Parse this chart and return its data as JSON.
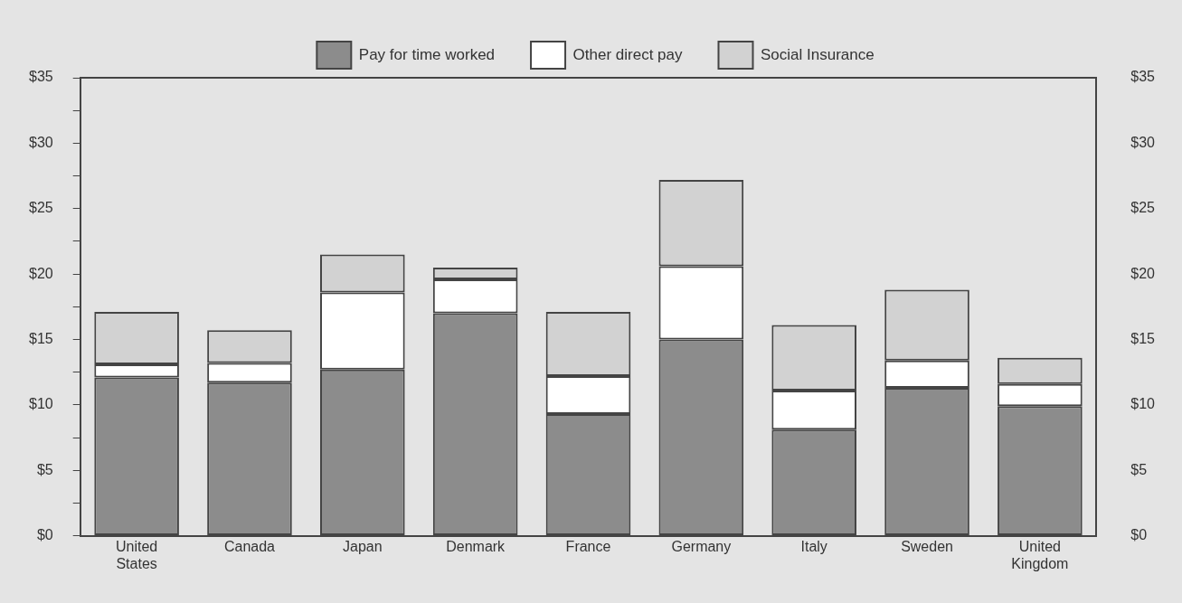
{
  "chart_data": {
    "type": "bar",
    "stacked": true,
    "categories": [
      "United States",
      "Canada",
      "Japan",
      "Denmark",
      "France",
      "Germany",
      "Italy",
      "Sweden",
      "United Kingdom"
    ],
    "series": [
      {
        "name": "Pay for time worked",
        "color": "#8c8c8c",
        "values": [
          12.1,
          11.7,
          12.7,
          17.0,
          9.3,
          15.0,
          8.1,
          11.3,
          9.9
        ]
      },
      {
        "name": "Other direct pay",
        "color": "#ffffff",
        "values": [
          1.0,
          1.5,
          5.9,
          2.6,
          2.9,
          5.6,
          3.0,
          2.1,
          1.7
        ]
      },
      {
        "name": "Social Insurance",
        "color": "#d2d2d2",
        "values": [
          4.0,
          2.5,
          2.9,
          0.9,
          4.9,
          6.6,
          5.0,
          5.4,
          2.0
        ]
      }
    ],
    "ylim": [
      0,
      35
    ],
    "yticks": [
      {
        "value": 0,
        "label": "$0"
      },
      {
        "value": 2.5,
        "label": null
      },
      {
        "value": 5,
        "label": "$5"
      },
      {
        "value": 7.5,
        "label": null
      },
      {
        "value": 10,
        "label": "$10"
      },
      {
        "value": 12.5,
        "label": null
      },
      {
        "value": 15,
        "label": "$15"
      },
      {
        "value": 17.5,
        "label": null
      },
      {
        "value": 20,
        "label": "$20"
      },
      {
        "value": 22.5,
        "label": null
      },
      {
        "value": 25,
        "label": "$25"
      },
      {
        "value": 27.5,
        "label": null
      },
      {
        "value": 30,
        "label": "$30"
      },
      {
        "value": 32.5,
        "label": null
      },
      {
        "value": 35,
        "label": "$35"
      }
    ],
    "y2lim": [
      0,
      35
    ],
    "y2ticks": [
      {
        "value": 0,
        "label": "$0"
      },
      {
        "value": 5,
        "label": "$5"
      },
      {
        "value": 10,
        "label": "$10"
      },
      {
        "value": 15,
        "label": "$15"
      },
      {
        "value": 20,
        "label": "$20"
      },
      {
        "value": 25,
        "label": "$25"
      },
      {
        "value": 30,
        "label": "$30"
      },
      {
        "value": 35,
        "label": "$35"
      }
    ],
    "grid": false,
    "legend": "top"
  }
}
